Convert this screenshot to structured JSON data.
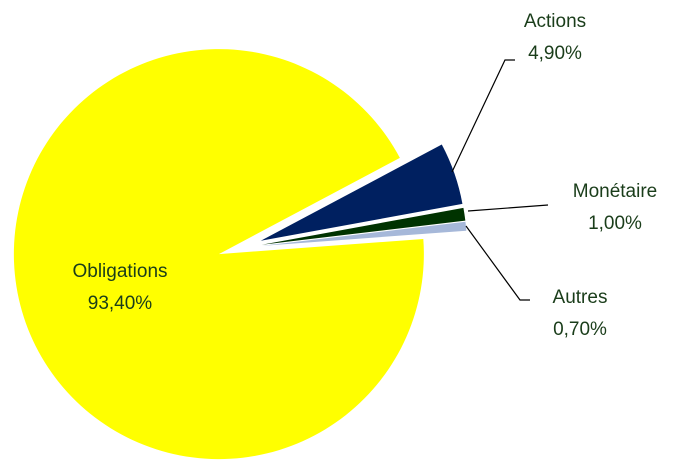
{
  "chart_data": {
    "type": "pie",
    "categories": [
      "Actions",
      "Monétaire",
      "Autres",
      "Obligations"
    ],
    "values": [
      4.9,
      1.0,
      0.7,
      93.4
    ],
    "value_labels": [
      "4,90%",
      "1,00%",
      "0,70%",
      "93,40%"
    ],
    "colors": [
      "#002060",
      "#003300",
      "#a6b8d9",
      "#ffff00"
    ]
  }
}
